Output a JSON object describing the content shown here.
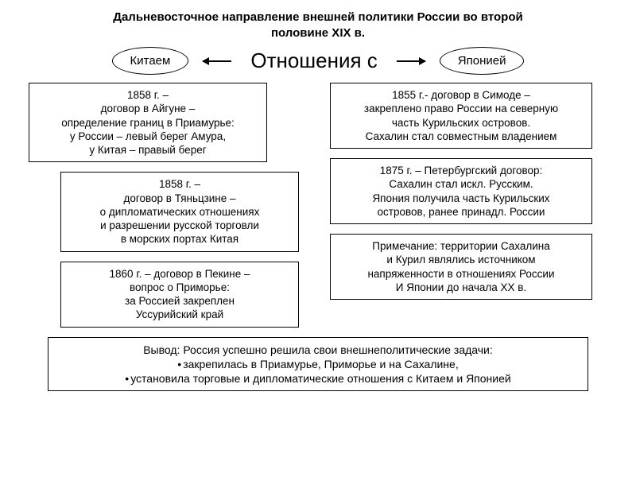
{
  "colors": {
    "background": "#ffffff",
    "box_border": "#000000",
    "text": "#000000",
    "arrow": "#000000"
  },
  "typography": {
    "title_fontsize": 15,
    "title_weight": "bold",
    "center_label_fontsize": 26,
    "ellipse_fontsize": 15,
    "box_fontsize": 13.5,
    "conclusion_fontsize": 14,
    "font_family": "Arial"
  },
  "title_line1": "Дальневосточное направление внешней политики России во второй",
  "title_line2": "половине XIX в.",
  "center_label": "Отношения с",
  "left_country": "Китаем",
  "right_country": "Японией",
  "left_boxes": [
    "1858 г. –\nдоговор в Айгуне –\nопределение границ в Приамурье:\nу России – левый берег Амура,\nу Китая – правый берег",
    "1858 г. –\nдоговор в Тяньцзине –\nо дипломатических отношениях\nи разрешении русской торговли\nв морских портах Китая",
    "1860 г. – договор в Пекине –\nвопрос о Приморье:\nза Россией закреплен\nУссурийский край"
  ],
  "right_boxes": [
    "1855 г.- договор в Симоде –\nзакреплено право России на северную\nчасть Курильских островов.\nСахалин стал совместным владением",
    "1875 г. – Петербургский договор:\nСахалин стал искл. Русским.\nЯпония получила часть Курильских\nостровов, ранее принадл. России",
    "Примечание: территории Сахалина\nи Курил являлись источником\nнапряженности в отношениях России\nИ Японии до начала XX в."
  ],
  "conclusion_lead": "Вывод: Россия успешно решила свои внешнеполитические задачи:",
  "conclusion_b1": "закрепилась в Приамурье, Приморье и на Сахалине,",
  "conclusion_b2": "установила торговые и дипломатические отношения с Китаем и Японией"
}
